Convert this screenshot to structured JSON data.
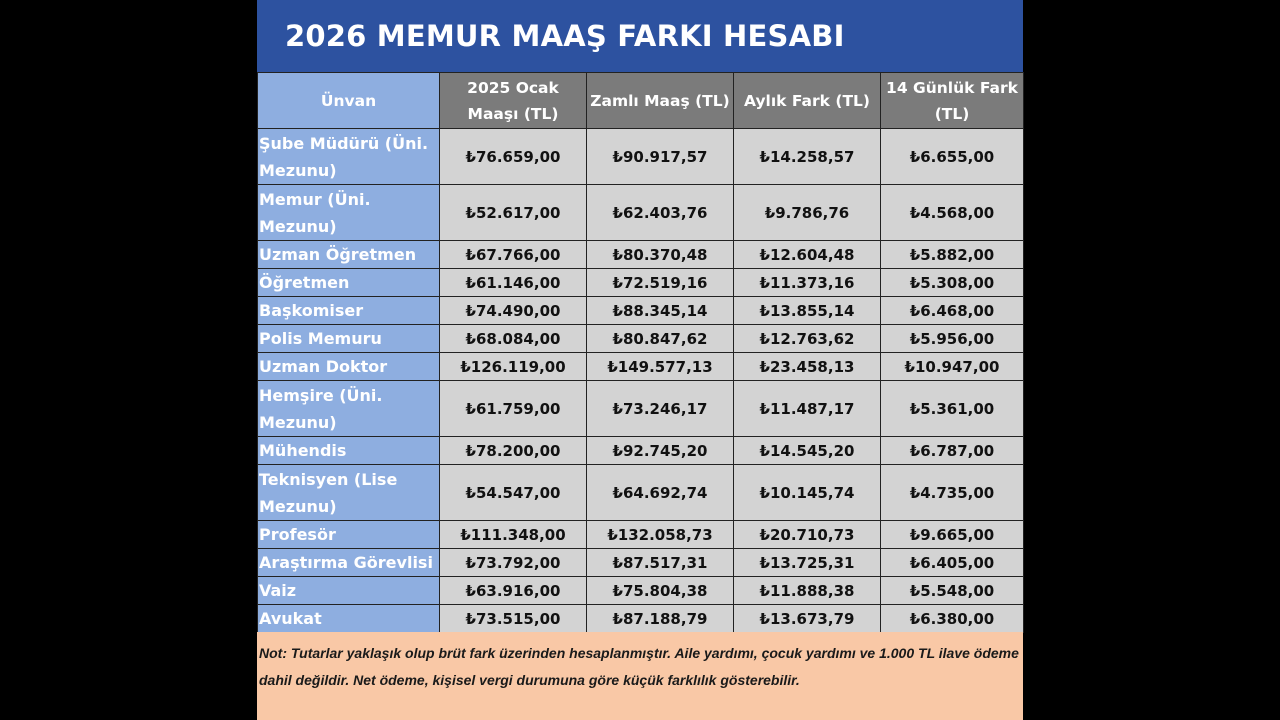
{
  "title": "2026 MEMUR MAAŞ FARKI HESABI",
  "headers": [
    "Ünvan",
    "2025 Ocak Maaşı (TL)",
    "Zamlı Maaş (TL)",
    "Aylık Fark (TL)",
    "14 Günlük Fark (TL)"
  ],
  "rows": [
    [
      "Şube Müdürü (Üni. Mezunu)",
      "₺76.659,00",
      "₺90.917,57",
      "₺14.258,57",
      "₺6.655,00"
    ],
    [
      "Memur (Üni. Mezunu)",
      "₺52.617,00",
      "₺62.403,76",
      "₺9.786,76",
      "₺4.568,00"
    ],
    [
      "Uzman Öğretmen",
      "₺67.766,00",
      "₺80.370,48",
      "₺12.604,48",
      "₺5.882,00"
    ],
    [
      "Öğretmen",
      "₺61.146,00",
      "₺72.519,16",
      "₺11.373,16",
      "₺5.308,00"
    ],
    [
      "Başkomiser",
      "₺74.490,00",
      "₺88.345,14",
      "₺13.855,14",
      "₺6.468,00"
    ],
    [
      "Polis Memuru",
      "₺68.084,00",
      "₺80.847,62",
      "₺12.763,62",
      "₺5.956,00"
    ],
    [
      "Uzman Doktor",
      "₺126.119,00",
      "₺149.577,13",
      "₺23.458,13",
      "₺10.947,00"
    ],
    [
      "Hemşire (Üni. Mezunu)",
      "₺61.759,00",
      "₺73.246,17",
      "₺11.487,17",
      "₺5.361,00"
    ],
    [
      "Mühendis",
      "₺78.200,00",
      "₺92.745,20",
      "₺14.545,20",
      "₺6.787,00"
    ],
    [
      "Teknisyen (Lise Mezunu)",
      "₺54.547,00",
      "₺64.692,74",
      "₺10.145,74",
      "₺4.735,00"
    ],
    [
      "Profesör",
      "₺111.348,00",
      "₺132.058,73",
      "₺20.710,73",
      "₺9.665,00"
    ],
    [
      "Araştırma Görevlisi",
      "₺73.792,00",
      "₺87.517,31",
      "₺13.725,31",
      "₺6.405,00"
    ],
    [
      "Vaiz",
      "₺63.916,00",
      "₺75.804,38",
      "₺11.888,38",
      "₺5.548,00"
    ],
    [
      "Avukat",
      "₺73.515,00",
      "₺87.188,79",
      "₺13.673,79",
      "₺6.380,00"
    ]
  ],
  "note": "Not: Tutarlar yaklaşık olup brüt fark üzerinden hesaplanmıştır. Aile yardımı, çocuk yardımı ve 1.000 TL ilave ödeme dahil değildir. Net ödeme, kişisel vergi durumuna göre küçük farklılık gösterebilir.",
  "colors": {
    "title_bg": "#2d52a0",
    "first_col": "#8eaee0",
    "header": "#7b7b7b",
    "cell": "#d3d3d3",
    "note_bg": "#f9c8a6"
  }
}
